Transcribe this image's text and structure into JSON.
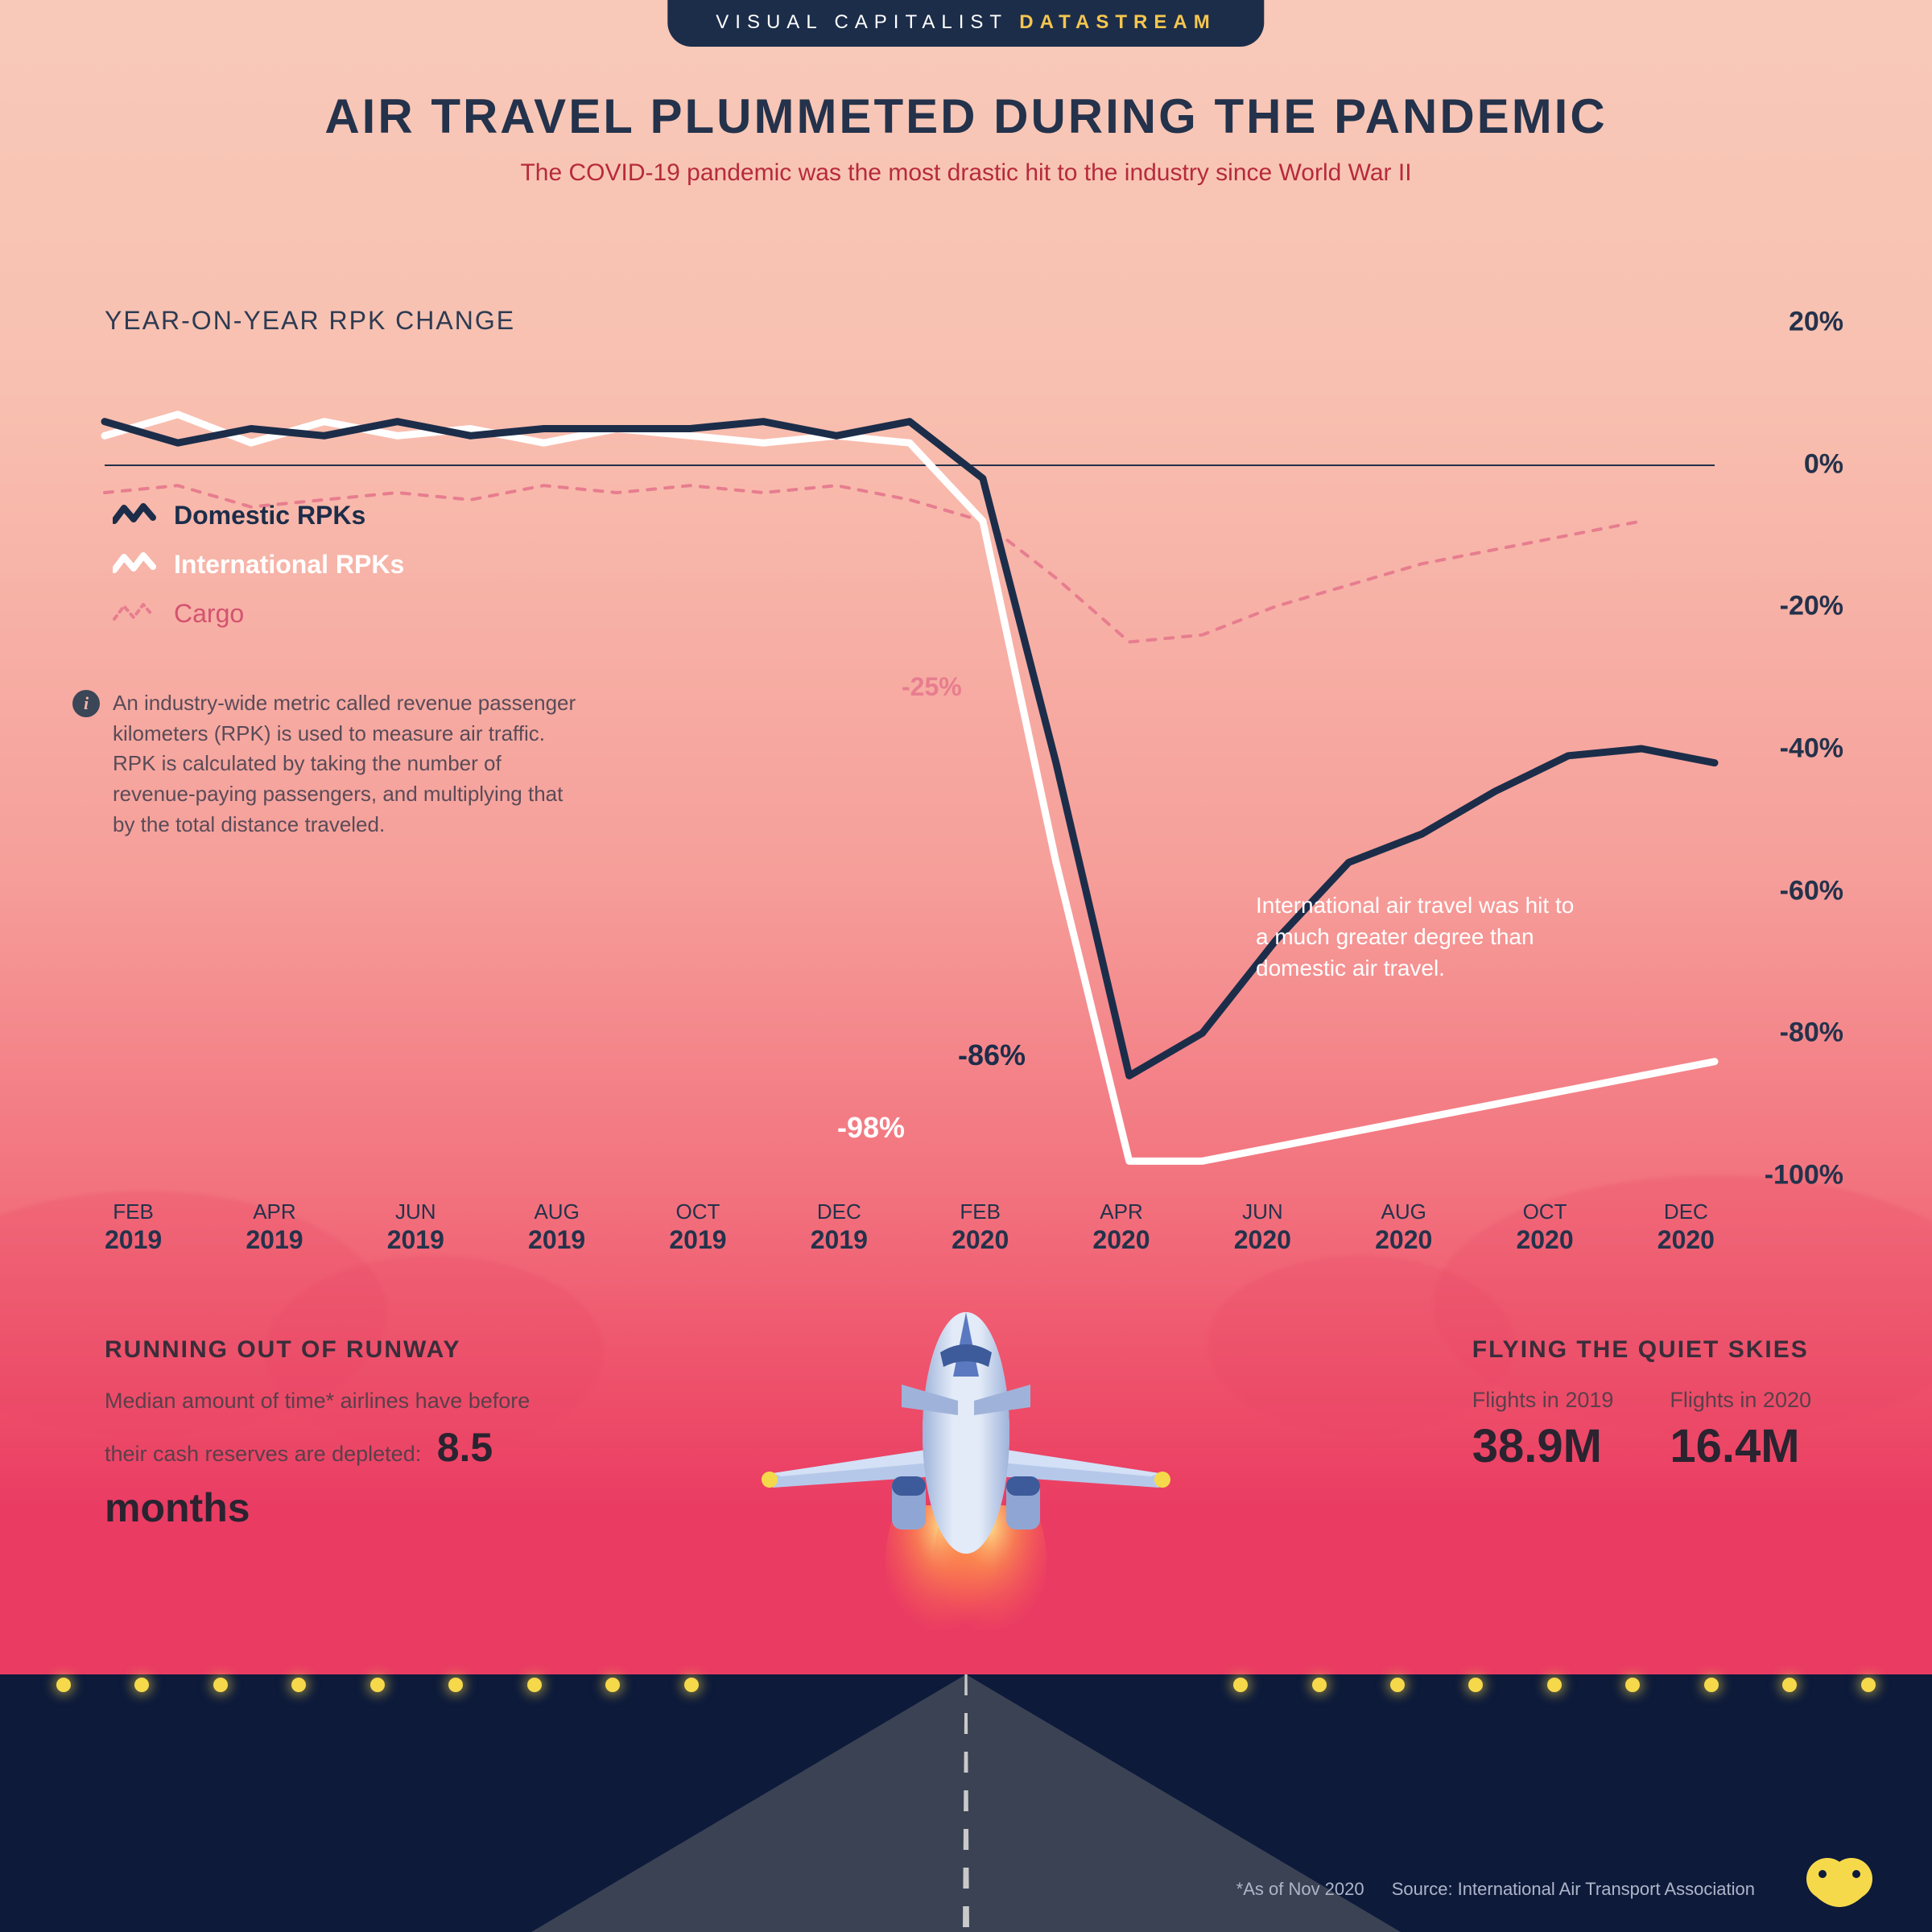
{
  "header": {
    "brand_left": "VISUAL CAPITALIST",
    "brand_right": "DATASTREAM"
  },
  "title": "AIR TRAVEL PLUMMETED DURING THE PANDEMIC",
  "subtitle": "The COVID-19 pandemic was the most drastic hit to the industry since World War II",
  "chart": {
    "title": "YEAR-ON-YEAR RPK CHANGE",
    "type": "line",
    "ylim": [
      -100,
      20
    ],
    "y_ticks": [
      20,
      0,
      -20,
      -40,
      -60,
      -80,
      -100
    ],
    "y_tick_labels": [
      "20%",
      "0%",
      "-20%",
      "-40%",
      "-60%",
      "-80%",
      "-100%"
    ],
    "x_labels": [
      {
        "m": "FEB",
        "y": "2019"
      },
      {
        "m": "APR",
        "y": "2019"
      },
      {
        "m": "JUN",
        "y": "2019"
      },
      {
        "m": "AUG",
        "y": "2019"
      },
      {
        "m": "OCT",
        "y": "2019"
      },
      {
        "m": "DEC",
        "y": "2019"
      },
      {
        "m": "FEB",
        "y": "2020"
      },
      {
        "m": "APR",
        "y": "2020"
      },
      {
        "m": "JUN",
        "y": "2020"
      },
      {
        "m": "AUG",
        "y": "2020"
      },
      {
        "m": "OCT",
        "y": "2020"
      },
      {
        "m": "DEC",
        "y": "2020"
      }
    ],
    "series": {
      "domestic": {
        "label": "Domestic RPKs",
        "color": "#1c2d4a",
        "stroke_width": 9,
        "values": [
          6,
          3,
          5,
          4,
          6,
          4,
          5,
          5,
          5,
          6,
          4,
          6,
          -2,
          -42,
          -86,
          -80,
          -67,
          -56,
          -52,
          -46,
          -41,
          -40,
          -42
        ]
      },
      "international": {
        "label": "International RPKs",
        "color": "#ffffff",
        "stroke_width": 9,
        "values": [
          4,
          7,
          3,
          6,
          4,
          5,
          3,
          5,
          4,
          3,
          4,
          3,
          -8,
          -56,
          -98,
          -98,
          -96,
          -94,
          -92,
          -90,
          -88,
          -86,
          -84
        ]
      },
      "cargo": {
        "label": "Cargo",
        "color": "#e77d8f",
        "stroke_width": 4,
        "dash": "10,12",
        "values": [
          -4,
          -3,
          -6,
          -5,
          -4,
          -5,
          -3,
          -4,
          -3,
          -4,
          -3,
          -5,
          -8,
          -16,
          -25,
          -24,
          -20,
          -17,
          -14,
          -12,
          -10,
          -8,
          null
        ]
      }
    },
    "callouts": {
      "cargo": "-25%",
      "domestic": "-86%",
      "international": "-98%"
    },
    "annotation": "International air travel was hit to a much greater degree than domestic air travel.",
    "info_text": "An industry-wide metric called revenue passenger kilometers (RPK) is used to measure air traffic. RPK is calculated by taking the number of revenue-paying passengers, and multiplying that by the total distance traveled.",
    "background_top": "#f8c9b9",
    "background_bottom": "#ea3c63",
    "zero_line_color": "#24324b",
    "label_color": "#24324b",
    "label_fontsize": 34,
    "x_label_fontsize": 26
  },
  "sections": {
    "left": {
      "heading": "RUNNING OUT OF RUNWAY",
      "body": "Median amount of time* airlines have before their cash reserves are depleted:",
      "value": "8.5 months"
    },
    "right": {
      "heading": "FLYING THE QUIET SKIES",
      "stat1_label": "Flights in 2019",
      "stat1_value": "38.9M",
      "stat2_label": "Flights in 2020",
      "stat2_value": "16.4M"
    }
  },
  "footer": {
    "asterisk": "*As of Nov 2020",
    "source": "Source: International Air Transport Association"
  },
  "colors": {
    "navy": "#1c2d4a",
    "accent_yellow": "#f6d94b",
    "subtitle_red": "#b72a3a",
    "cargo_pink": "#e77d8f",
    "runway_grass": "#0d1a3a",
    "runway_tarmac": "#3a4254"
  }
}
